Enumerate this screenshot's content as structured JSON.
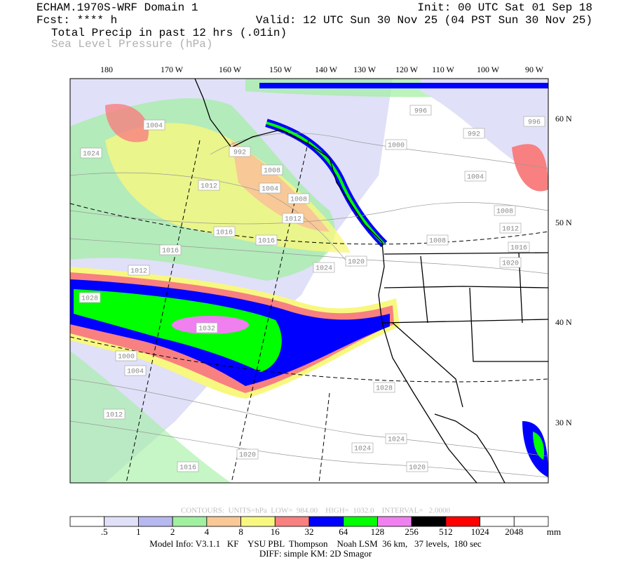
{
  "header": {
    "model": "ECHAM.1970S-WRF Domain 1",
    "init": "Init: 00 UTC Sat 01 Sep 18",
    "fcst": "Fcst: **** h",
    "valid": "Valid: 12 UTC Sun 30 Nov 25 (04 PST Sun 30 Nov 25)",
    "field1": "Total Precip in past 12 hrs (.01in)",
    "field2": "Sea Level Pressure (hPa)"
  },
  "map": {
    "longitude_labels": [
      "180",
      "170 W",
      "160 W",
      "150 W",
      "140 W",
      "130 W",
      "120 W",
      "110 W",
      "100 W",
      "90 W"
    ],
    "latitude_labels": [
      "60 N",
      "50 N",
      "40 N",
      "30 N"
    ],
    "isobar_labels": [
      "1004",
      "1024",
      "992",
      "1012",
      "1008",
      "1004",
      "1008",
      "1012",
      "1016",
      "1016",
      "1016",
      "1012",
      "1024",
      "1020",
      "1028",
      "1032",
      "1000",
      "1004",
      "1012",
      "1028",
      "1024",
      "1024",
      "1020",
      "1016",
      "1020",
      "1000",
      "996",
      "992",
      "996",
      "1004",
      "1008",
      "1012",
      "1008",
      "1016",
      "1020"
    ]
  },
  "contour_info": "CONTOURS:  UNITS=hPa  LOW=  984.00    HIGH=  1032.0    INTERVAL=   2.0000",
  "colorbar": {
    "colors": [
      "#ffffff",
      "#e0e0f8",
      "#b8b8f0",
      "#a0f0a0",
      "#f8c896",
      "#f8f880",
      "#f88080",
      "#0000ff",
      "#00ff00",
      "#f080f0",
      "#000000",
      "#ff0000",
      "#ffffff",
      "#ffffff"
    ],
    "labels": [
      ".5",
      "1",
      "2",
      "4",
      "8",
      "16",
      "32",
      "64",
      "128",
      "256",
      "512",
      "1024",
      "2048"
    ],
    "unit": "mm"
  },
  "footer": {
    "model_info": "Model Info: V3.1.1   KF    YSU PBL  Thompson    Noah LSM  36 km,   37 levels,  180 sec",
    "diff": "DIFF: simple KM: 2D Smagor"
  }
}
